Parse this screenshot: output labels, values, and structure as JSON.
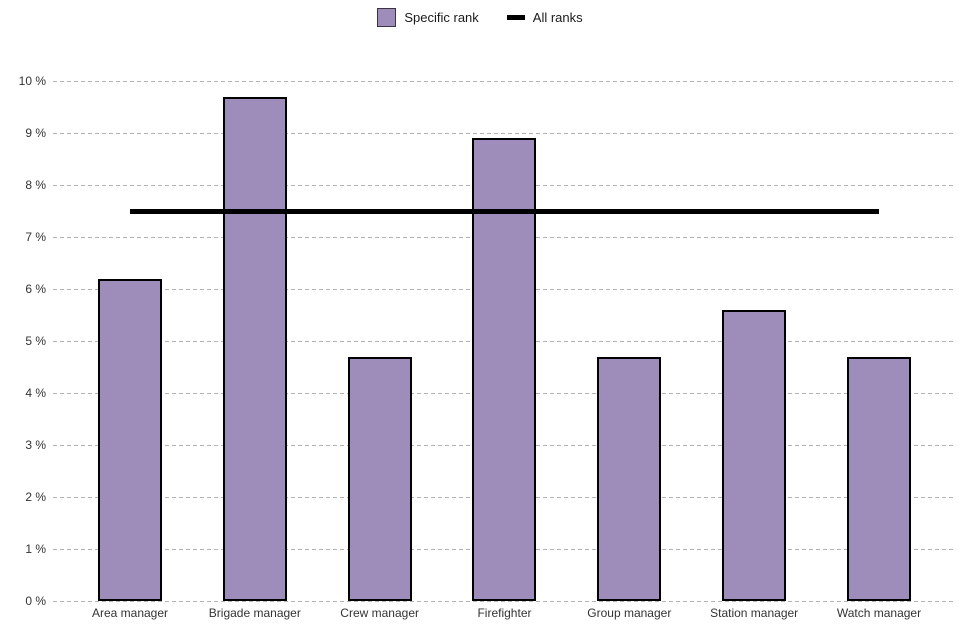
{
  "chart_data": {
    "type": "bar",
    "title": "",
    "xlabel": "",
    "ylabel": "",
    "categories": [
      "Area manager",
      "Brigade manager",
      "Crew manager",
      "Firefighter",
      "Group manager",
      "Station manager",
      "Watch manager"
    ],
    "series": [
      {
        "name": "Specific rank",
        "type": "bar",
        "color": "#9e8cba",
        "border_color": "#000000",
        "values": [
          6.2,
          9.7,
          4.7,
          8.9,
          4.7,
          5.6,
          4.7
        ]
      },
      {
        "name": "All ranks",
        "type": "line",
        "color": "#000000",
        "value": 7.5
      }
    ],
    "ylim": [
      0,
      10
    ],
    "y_ticks": [
      "0 %",
      "1 %",
      "2 %",
      "3 %",
      "4 %",
      "5 %",
      "6 %",
      "7 %",
      "8 %",
      "9 %",
      "10 %"
    ],
    "grid": {
      "visible": true,
      "style": "dashed",
      "color": "#b3b3b3"
    },
    "legend_position": "top"
  },
  "colors": {
    "background": "#ffffff",
    "text": "#333333",
    "bar_fill": "#9e8cba",
    "bar_border": "#000000",
    "line": "#000000",
    "grid": "#b3b3b3"
  }
}
